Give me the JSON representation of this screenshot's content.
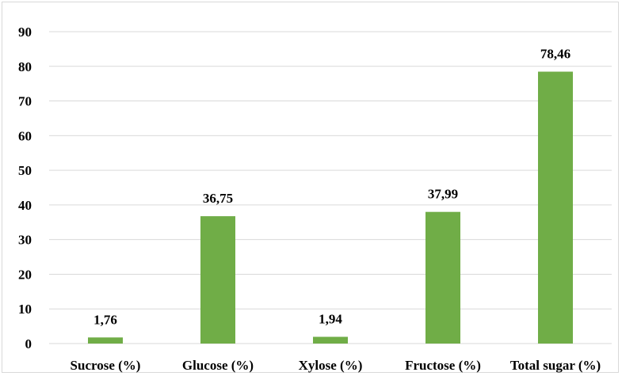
{
  "chart_data": {
    "type": "bar",
    "categories": [
      "Sucrose (%)",
      "Glucose (%)",
      "Xylose (%)",
      "Fructose (%)",
      "Total sugar (%)"
    ],
    "values": [
      1.76,
      36.75,
      1.94,
      37.99,
      78.46
    ],
    "data_labels": [
      "1,76",
      "36,75",
      "1,94",
      "37,99",
      "78,46"
    ],
    "title": "",
    "xlabel": "",
    "ylabel": "",
    "ylim": [
      0,
      90
    ],
    "yticks": [
      0,
      10,
      20,
      30,
      40,
      50,
      60,
      70,
      80,
      90
    ],
    "grid": true,
    "legend": "none",
    "colors": {
      "bar": "#70ad47",
      "grid": "#d9d9d9",
      "axis": "#d9d9d9",
      "text": "#000000"
    }
  }
}
